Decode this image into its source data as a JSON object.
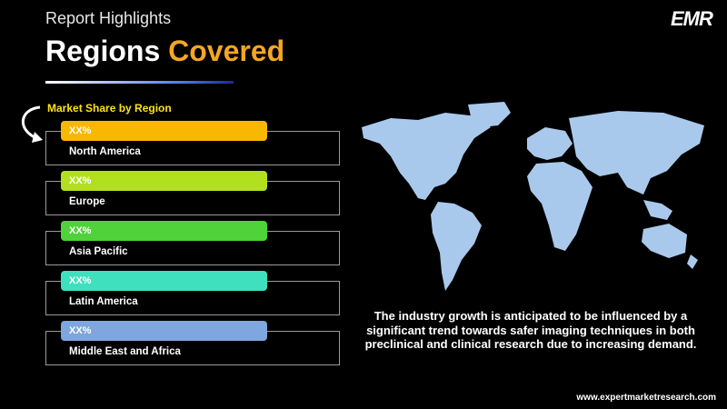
{
  "header": {
    "label": "Report Highlights",
    "title": "Regions",
    "title_highlight": "Covered",
    "logo": "EMR"
  },
  "section_title": "Market Share by Region",
  "regions": [
    {
      "share": "XX%",
      "name": "North America",
      "color": "#f9b800"
    },
    {
      "share": "XX%",
      "name": "Europe",
      "color": "#b3e01e"
    },
    {
      "share": "XX%",
      "name": "Asia Pacific",
      "color": "#4fd23a"
    },
    {
      "share": "XX%",
      "name": "Latin America",
      "color": "#3fe0bd"
    },
    {
      "share": "XX%",
      "name": "Middle East and Africa",
      "color": "#7fa6de"
    }
  ],
  "description": "The industry growth is anticipated to be influenced by a significant trend towards safer imaging techniques in both preclinical and clinical research due to increasing demand.",
  "footer": {
    "website": "www.expertmarketresearch.com"
  }
}
